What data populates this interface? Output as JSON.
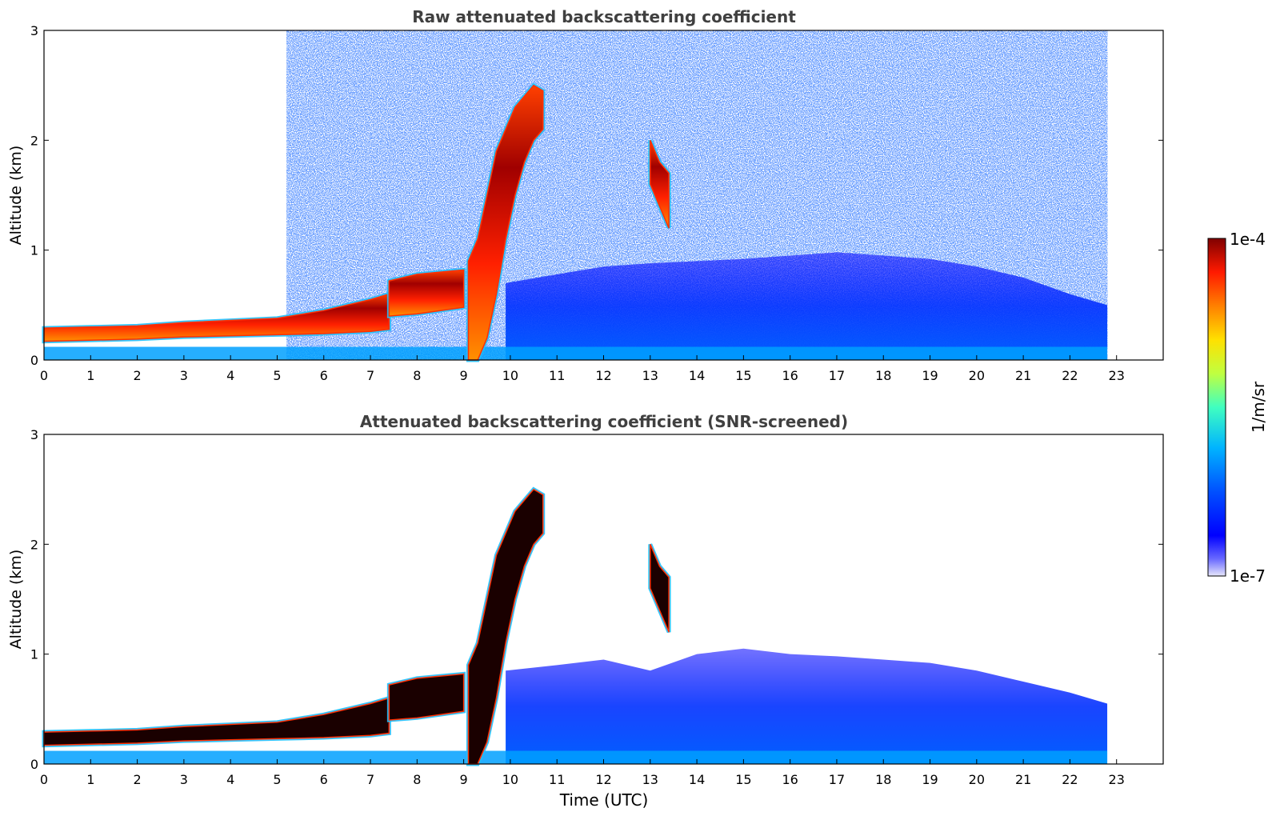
{
  "chart_data": [
    {
      "type": "heatmap",
      "title": "Raw attenuated backscattering coefficient",
      "xlabel": "",
      "ylabel": "Altitude (km)",
      "xlim": [
        0,
        24
      ],
      "ylim": [
        0,
        3
      ],
      "x_ticks": [
        "0",
        "1",
        "2",
        "3",
        "4",
        "5",
        "6",
        "7",
        "8",
        "9",
        "10",
        "11",
        "12",
        "13",
        "14",
        "15",
        "16",
        "17",
        "18",
        "19",
        "20",
        "21",
        "22",
        "23"
      ],
      "y_ticks": [
        "0",
        "1",
        "2",
        "3"
      ],
      "data_end_time": 22.8,
      "layers": [
        {
          "t": [
            0,
            1,
            2,
            3,
            4,
            5,
            6,
            7,
            7.4
          ],
          "base": [
            0.17,
            0.18,
            0.19,
            0.21,
            0.22,
            0.23,
            0.24,
            0.26,
            0.28
          ],
          "top": [
            0.29,
            0.3,
            0.31,
            0.34,
            0.36,
            0.38,
            0.45,
            0.55,
            0.6
          ]
        },
        {
          "t": [
            7.4,
            8,
            8.5,
            9
          ],
          "base": [
            0.4,
            0.42,
            0.45,
            0.48
          ],
          "top": [
            0.72,
            0.78,
            0.8,
            0.82
          ]
        },
        {
          "t": [
            9.1,
            9.3,
            9.5,
            9.7,
            9.9,
            10.1,
            10.3,
            10.5,
            10.7
          ],
          "base": [
            0,
            0,
            0.2,
            0.6,
            1.1,
            1.5,
            1.8,
            2.0,
            2.1
          ],
          "top": [
            0.9,
            1.1,
            1.5,
            1.9,
            2.1,
            2.3,
            2.4,
            2.5,
            2.45
          ]
        },
        {
          "t": [
            13.0,
            13.2,
            13.4
          ],
          "base": [
            1.6,
            1.4,
            1.2
          ],
          "top": [
            2.0,
            1.8,
            1.7
          ]
        }
      ],
      "aerosol_top": {
        "t": [
          9.9,
          11,
          12,
          13,
          14,
          15,
          16,
          17,
          18,
          19,
          20,
          21,
          22,
          22.8
        ],
        "top": [
          0.7,
          0.78,
          0.85,
          0.88,
          0.9,
          0.92,
          0.95,
          0.98,
          0.95,
          0.92,
          0.85,
          0.75,
          0.6,
          0.5
        ]
      }
    },
    {
      "type": "heatmap",
      "title": "Attenuated backscattering coefficient (SNR-screened)",
      "xlabel": "Time (UTC)",
      "ylabel": "Altitude (km)",
      "xlim": [
        0,
        24
      ],
      "ylim": [
        0,
        3
      ],
      "x_ticks": [
        "0",
        "1",
        "2",
        "3",
        "4",
        "5",
        "6",
        "7",
        "8",
        "9",
        "10",
        "11",
        "12",
        "13",
        "14",
        "15",
        "16",
        "17",
        "18",
        "19",
        "20",
        "21",
        "22",
        "23"
      ],
      "y_ticks": [
        "0",
        "1",
        "2",
        "3"
      ],
      "data_end_time": 22.8,
      "layers": [
        {
          "t": [
            0,
            1,
            2,
            3,
            4,
            5,
            6,
            7,
            7.4
          ],
          "base": [
            0.17,
            0.18,
            0.19,
            0.21,
            0.22,
            0.23,
            0.24,
            0.26,
            0.28
          ],
          "top": [
            0.29,
            0.3,
            0.31,
            0.34,
            0.36,
            0.38,
            0.45,
            0.55,
            0.6
          ]
        },
        {
          "t": [
            7.4,
            8,
            8.5,
            9
          ],
          "base": [
            0.4,
            0.42,
            0.45,
            0.48
          ],
          "top": [
            0.72,
            0.78,
            0.8,
            0.82
          ]
        },
        {
          "t": [
            9.1,
            9.3,
            9.5,
            9.7,
            9.9,
            10.1,
            10.3,
            10.5,
            10.7
          ],
          "base": [
            0,
            0,
            0.2,
            0.6,
            1.1,
            1.5,
            1.8,
            2.0,
            2.1
          ],
          "top": [
            0.9,
            1.1,
            1.5,
            1.9,
            2.1,
            2.3,
            2.4,
            2.5,
            2.45
          ]
        },
        {
          "t": [
            13.0,
            13.2,
            13.4
          ],
          "base": [
            1.6,
            1.4,
            1.2
          ],
          "top": [
            2.0,
            1.8,
            1.7
          ]
        }
      ],
      "aerosol_top": {
        "t": [
          9.9,
          11,
          12,
          13,
          14,
          15,
          16,
          17,
          18,
          19,
          20,
          21,
          22,
          22.8
        ],
        "top": [
          0.85,
          0.9,
          0.95,
          0.85,
          1.0,
          1.05,
          1.0,
          0.98,
          0.95,
          0.92,
          0.85,
          0.75,
          0.65,
          0.55
        ]
      }
    }
  ],
  "colorbar": {
    "label": "1/m/sr",
    "max_label": "1e-4",
    "min_label": "1e-7",
    "colors": [
      "#e6e6fa",
      "#6a6aff",
      "#0000ff",
      "#0050ff",
      "#00b4ff",
      "#40ffc0",
      "#c0ff40",
      "#ffe000",
      "#ff8000",
      "#ff1a00",
      "#800000"
    ]
  }
}
